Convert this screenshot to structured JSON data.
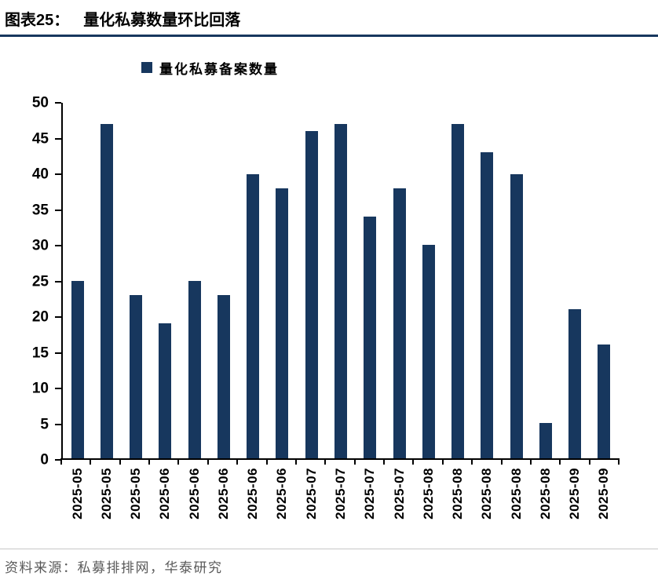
{
  "header": {
    "figure_label": "图表25：",
    "title": "量化私募数量环比回落"
  },
  "legend": {
    "label": "量化私募备案数量",
    "marker_color": "#17375E"
  },
  "footer": {
    "source": "资料来源：私募排排网，华泰研究"
  },
  "colors": {
    "bar": "#17375E",
    "title_underline": "#17375E",
    "axis": "#000000",
    "footer_divider": "#c8c8c8",
    "footer_text": "#595959"
  },
  "chart_data": {
    "type": "bar",
    "title": "量化私募数量环比回落",
    "legend": [
      "量化私募备案数量"
    ],
    "legend_position": "top",
    "grid": false,
    "categories": [
      "2025-05",
      "2025-05",
      "2025-05",
      "2025-06",
      "2025-06",
      "2025-06",
      "2025-06",
      "2025-06",
      "2025-07",
      "2025-07",
      "2025-07",
      "2025-07",
      "2025-08",
      "2025-08",
      "2025-08",
      "2025-08",
      "2025-08",
      "2025-09",
      "2025-09"
    ],
    "values": [
      25,
      47,
      23,
      19,
      25,
      23,
      40,
      38,
      46,
      47,
      34,
      38,
      30,
      47,
      43,
      40,
      5,
      21,
      16
    ],
    "xlabel": "",
    "ylabel": "",
    "ylim": [
      0,
      50
    ],
    "ytick_step": 5
  }
}
